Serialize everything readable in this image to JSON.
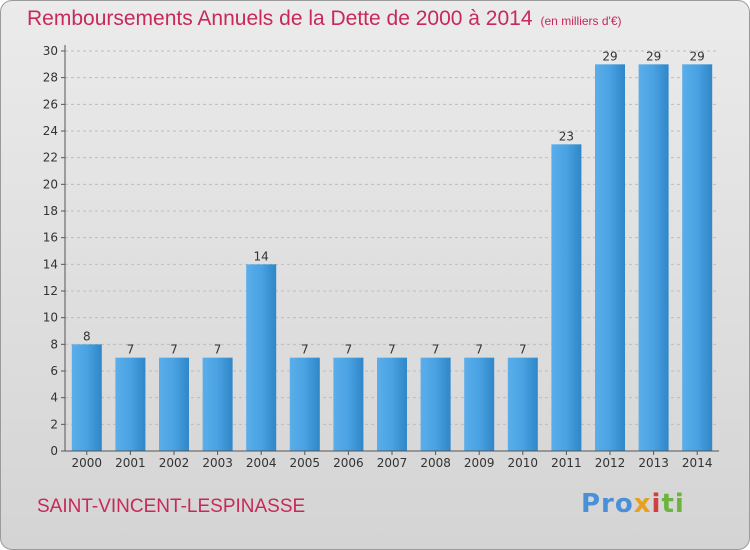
{
  "header": {
    "title": "Remboursements Annuels de la Dette de 2000 à 2014",
    "subtitle": "(en milliers d'€)"
  },
  "footer": {
    "town": "SAINT-VINCENT-LESPINASSE",
    "logo": {
      "p1": "Pro",
      "p2": "x",
      "p3": "i",
      "p4": "ti"
    }
  },
  "colors": {
    "accent": "#c8285a",
    "bar": "#3d95d6"
  },
  "chart_data": {
    "type": "bar",
    "title": "Remboursements Annuels de la Dette de 2000 à 2014",
    "subtitle": "(en milliers d'€)",
    "xlabel": "",
    "ylabel": "",
    "categories": [
      "2000",
      "2001",
      "2002",
      "2003",
      "2004",
      "2005",
      "2006",
      "2007",
      "2008",
      "2009",
      "2010",
      "2011",
      "2012",
      "2013",
      "2014"
    ],
    "values": [
      8,
      7,
      7,
      7,
      14,
      7,
      7,
      7,
      7,
      7,
      7,
      23,
      29,
      29,
      29
    ],
    "ylim": [
      0,
      30
    ],
    "yticks": [
      0,
      2,
      4,
      6,
      8,
      10,
      12,
      14,
      16,
      18,
      20,
      22,
      24,
      26,
      28,
      30
    ],
    "grid": true,
    "legend": "none"
  }
}
